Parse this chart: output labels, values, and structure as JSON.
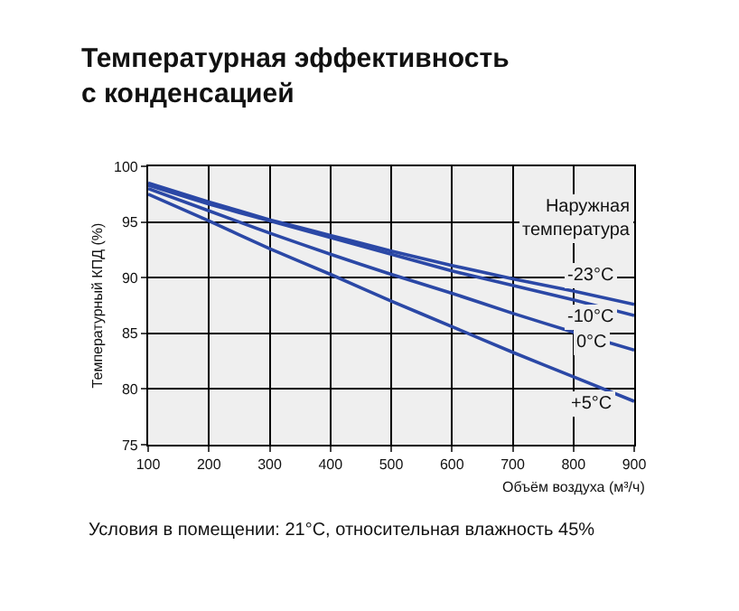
{
  "chart_data": {
    "type": "line",
    "title": "Температурная эффективность\nс конденсацией",
    "xlabel": "Объём воздуха (м³/ч)",
    "ylabel": "Температурный КПД (%)",
    "legend_title": "Наружная\nтемпература",
    "x": [
      100,
      200,
      300,
      400,
      500,
      600,
      700,
      800,
      900
    ],
    "series": [
      {
        "name": "-23°C",
        "color": "#2b48a6",
        "values": [
          98.5,
          96.8,
          95.2,
          93.8,
          92.4,
          91.1,
          89.9,
          88.8,
          87.6
        ]
      },
      {
        "name": "-10°C",
        "color": "#2b48a6",
        "values": [
          98.3,
          96.6,
          95.1,
          93.6,
          92.1,
          90.6,
          89.3,
          88.0,
          86.6
        ]
      },
      {
        "name": "0°C",
        "color": "#2b48a6",
        "values": [
          98.0,
          96.0,
          94.0,
          92.1,
          90.3,
          88.6,
          86.8,
          85.1,
          83.5
        ]
      },
      {
        "name": "+5°C",
        "color": "#2b48a6",
        "values": [
          97.5,
          95.1,
          92.6,
          90.3,
          87.9,
          85.6,
          83.3,
          81.1,
          78.9
        ]
      }
    ],
    "xlim": [
      100,
      900
    ],
    "xticks": [
      100,
      200,
      300,
      400,
      500,
      600,
      700,
      800,
      900
    ],
    "ylim": [
      75,
      100
    ],
    "yticks": [
      75,
      80,
      85,
      90,
      95,
      100
    ],
    "grid": true,
    "legend": false,
    "marker": "none",
    "line_style": "solid",
    "annotations": [
      "Условия в помещении: 21°C, относительная влажность 45%"
    ]
  }
}
